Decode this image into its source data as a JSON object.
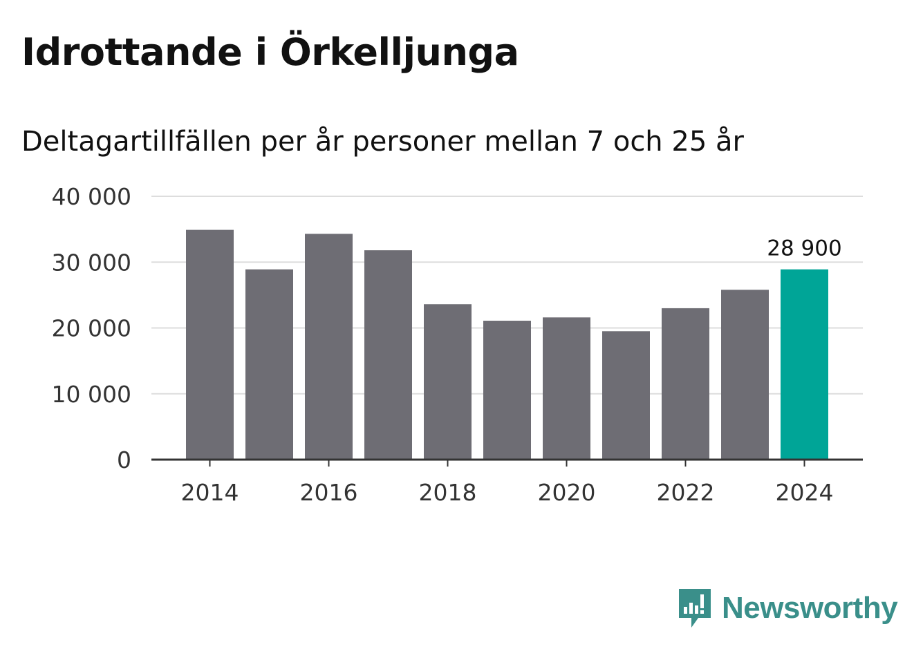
{
  "title": "Idrottande i Örkelljunga",
  "subtitle": "Deltagartillfällen per år personer mellan 7 och 25 år",
  "brand": {
    "name": "Newsworthy",
    "color": "#3a8f8a"
  },
  "colors": {
    "bar": "#6e6d74",
    "highlight": "#00a597",
    "grid": "#dddddd",
    "axis": "#333333",
    "tick_text": "#333333"
  },
  "chart_data": {
    "type": "bar",
    "categories": [
      "2014",
      "2015",
      "2016",
      "2017",
      "2018",
      "2019",
      "2020",
      "2021",
      "2022",
      "2023",
      "2024"
    ],
    "values": [
      34900,
      28900,
      34300,
      31800,
      23600,
      21100,
      21600,
      19500,
      23000,
      25800,
      28900
    ],
    "highlight_index": 10,
    "highlight_label": "28 900",
    "x_tick_labels": [
      "2014",
      "",
      "2016",
      "",
      "2018",
      "",
      "2020",
      "",
      "2022",
      "",
      "2024"
    ],
    "y_ticks": [
      0,
      10000,
      20000,
      30000,
      40000
    ],
    "y_tick_labels": [
      "0",
      "10 000",
      "20 000",
      "30 000",
      "40 000"
    ],
    "ylim": [
      0,
      40000
    ],
    "title": "Idrottande i Örkelljunga",
    "xlabel": "",
    "ylabel": "",
    "grid": true
  }
}
